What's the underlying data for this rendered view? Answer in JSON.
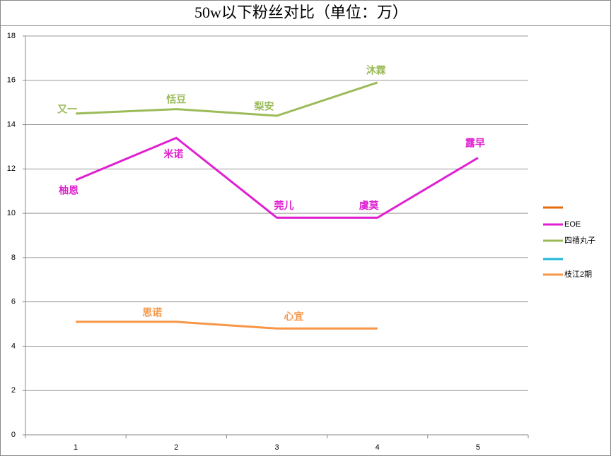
{
  "chart_data": {
    "type": "line",
    "title": "50w以下粉丝对比（单位：万）",
    "categories": [
      "1",
      "2",
      "3",
      "4",
      "5"
    ],
    "ylim": [
      0,
      18
    ],
    "yticks": [
      0,
      2,
      4,
      6,
      8,
      10,
      12,
      14,
      16,
      18
    ],
    "grid": true,
    "legend": "right",
    "series": [
      {
        "name": null,
        "color": "#e46c0a",
        "values": [
          null,
          null,
          null,
          null,
          null
        ],
        "point_labels": [
          null,
          null,
          null,
          null,
          null
        ]
      },
      {
        "name": "EOE",
        "color": "#e020d0",
        "values": [
          11.5,
          13.4,
          9.8,
          9.8,
          12.5
        ],
        "point_labels": [
          "柚恩",
          "米诺",
          "莞儿",
          "虞莫",
          "露早"
        ]
      },
      {
        "name": "四禧丸子",
        "color": "#9bbb59",
        "values": [
          14.5,
          14.7,
          14.4,
          15.9,
          null
        ],
        "point_labels": [
          "又一",
          "恬豆",
          "梨安",
          "沐霖",
          null
        ]
      },
      {
        "name": null,
        "color": "#1fb5d8",
        "values": [
          null,
          null,
          null,
          null,
          null
        ],
        "point_labels": [
          null,
          null,
          null,
          null,
          null
        ]
      },
      {
        "name": "枝江2期",
        "color": "#f79646",
        "values": [
          5.1,
          5.1,
          4.8,
          4.8,
          null
        ],
        "point_labels": [
          null,
          "思诺",
          "心宜",
          null,
          null
        ]
      }
    ]
  }
}
